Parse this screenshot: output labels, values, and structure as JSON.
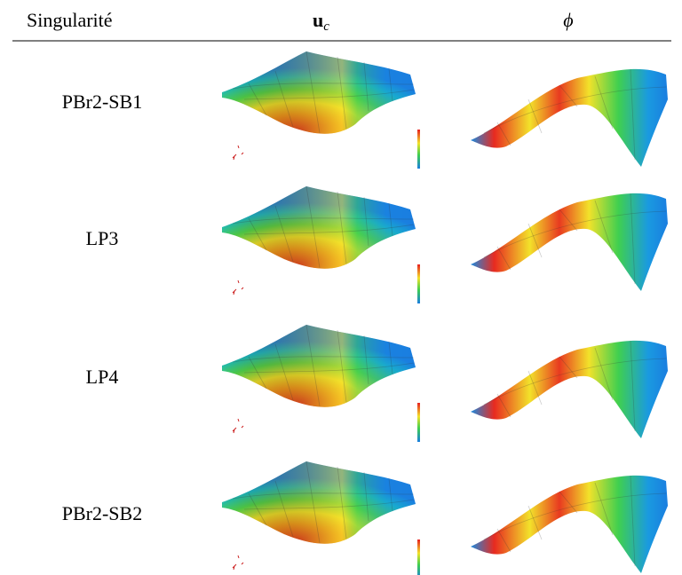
{
  "header": {
    "col0": "Singularité",
    "col1": {
      "symbol": "u",
      "subscript": "c"
    },
    "col2": "ϕ"
  },
  "rows": [
    "PBr2-SB1",
    "LP3",
    "LP4",
    "PBr2-SB2"
  ]
}
